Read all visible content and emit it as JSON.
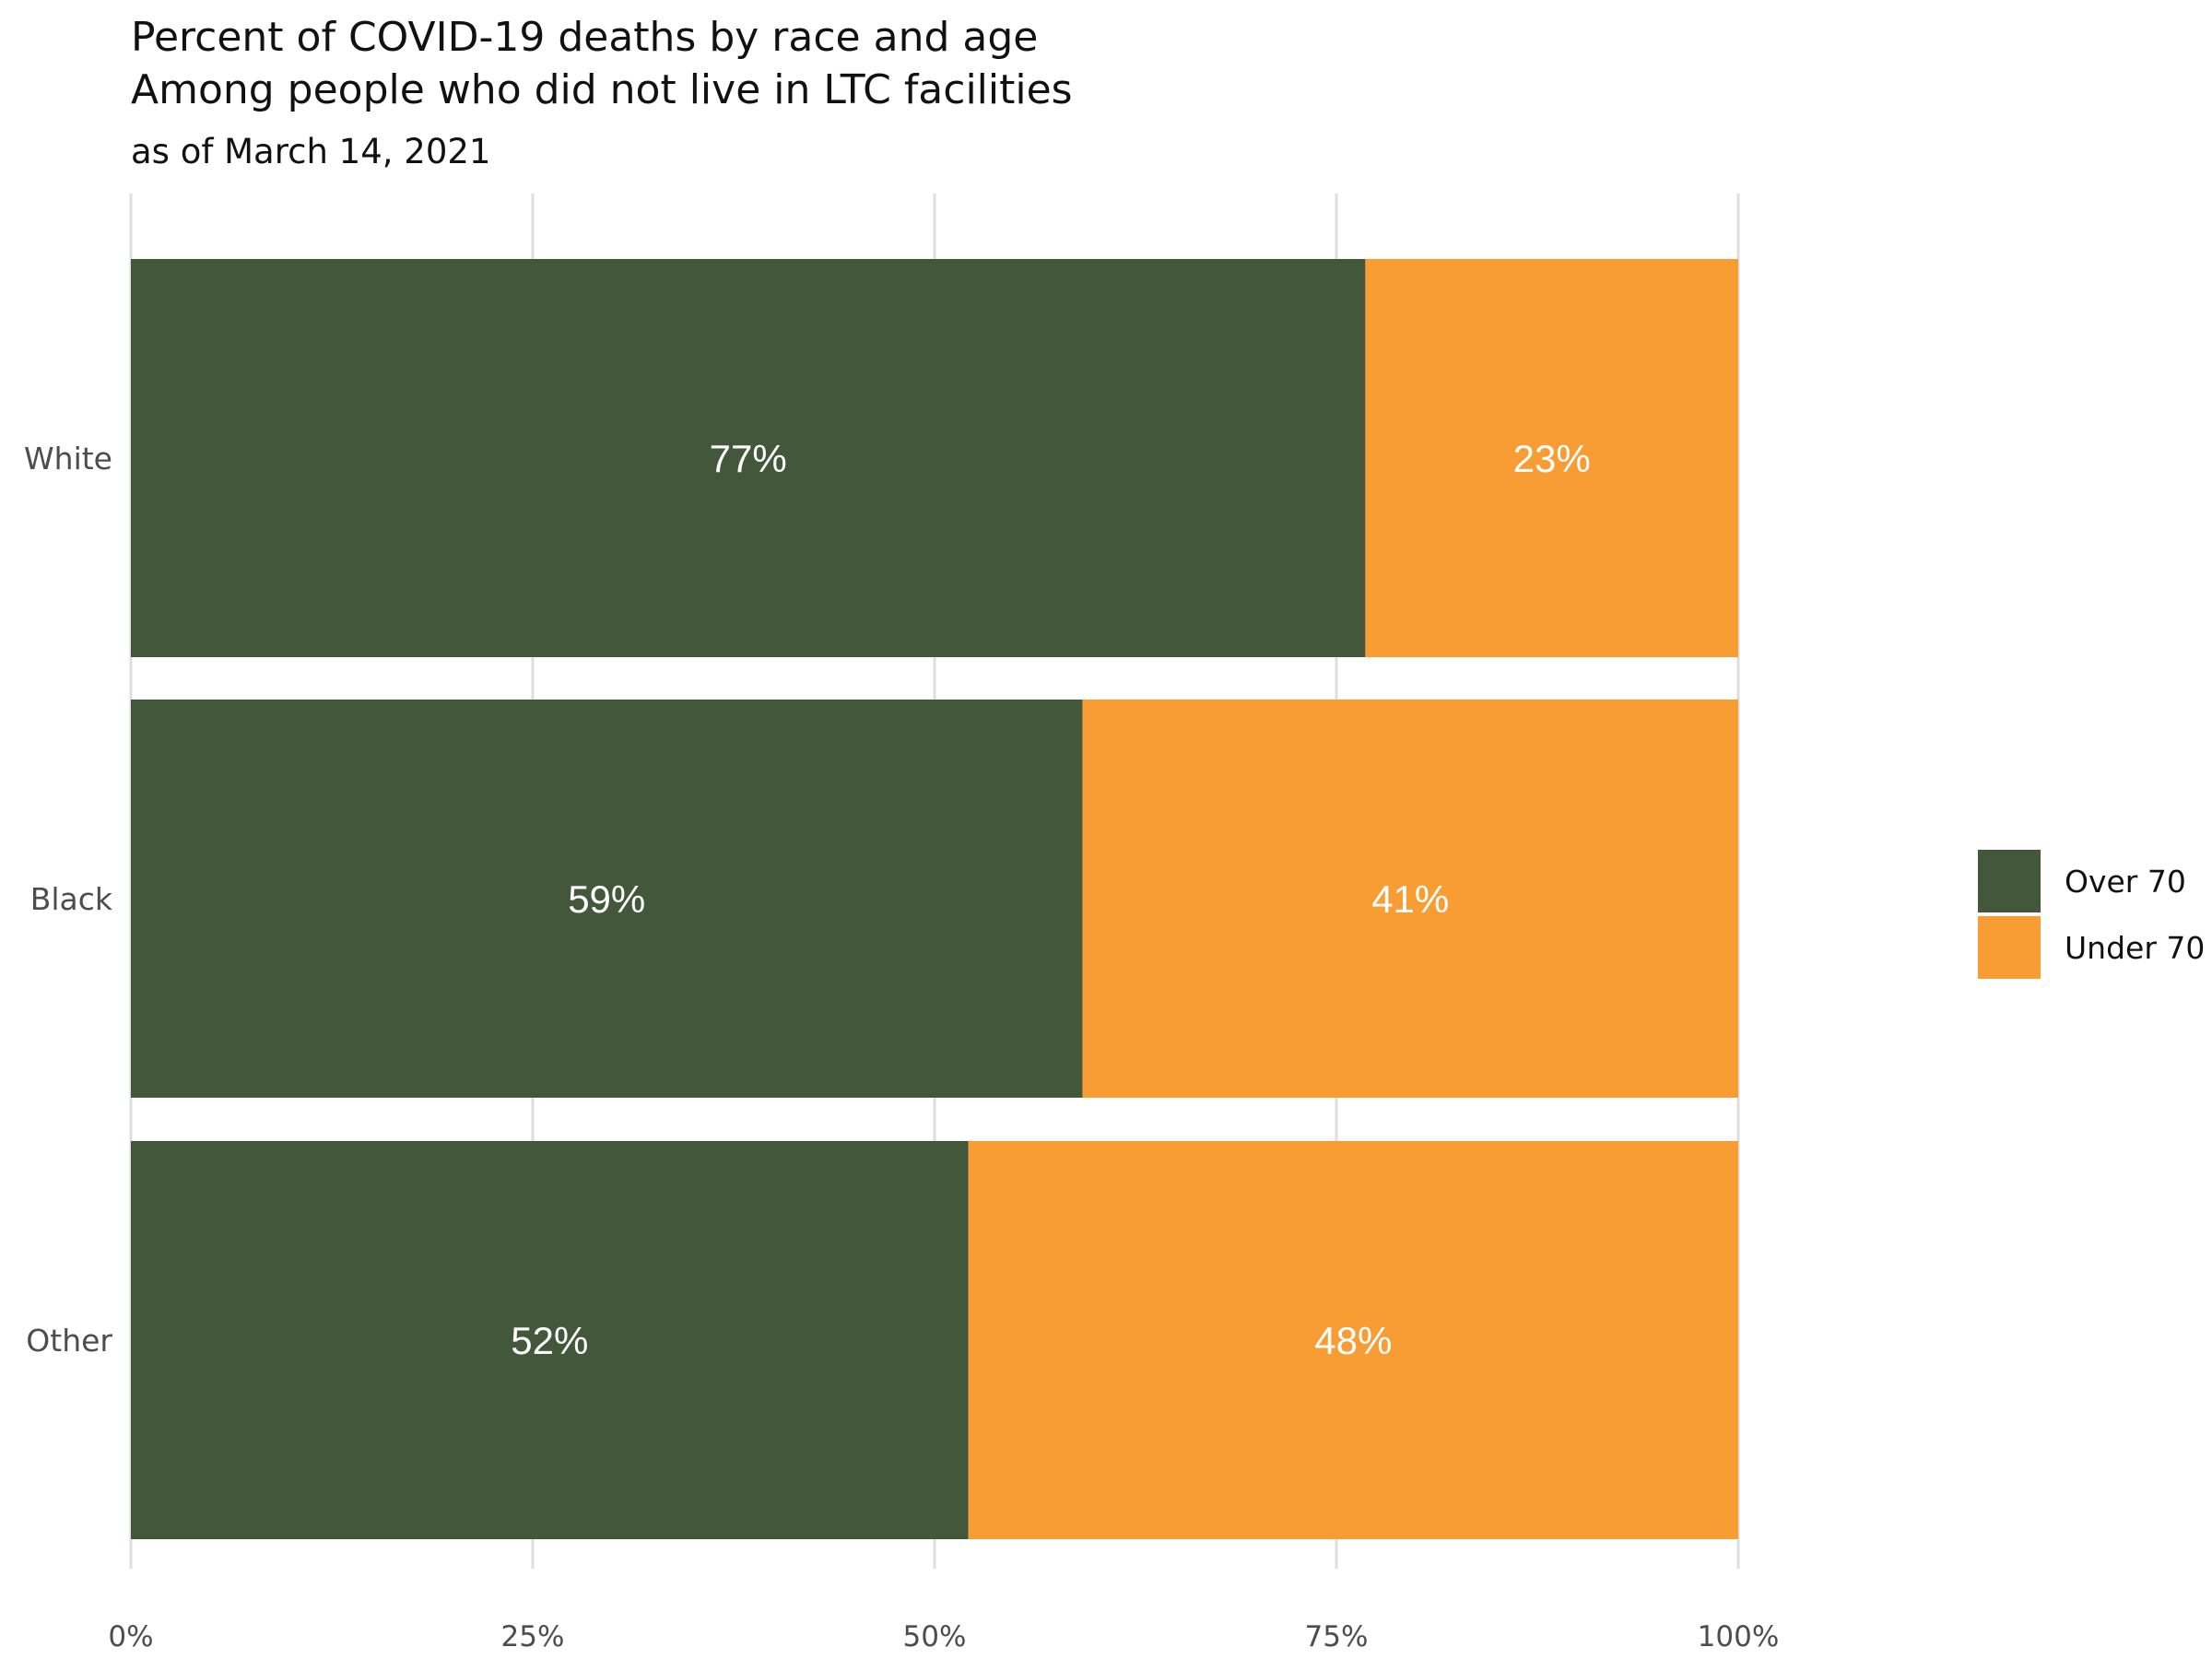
{
  "chart_data": {
    "type": "bar",
    "orientation": "horizontal",
    "stacked": true,
    "title": "Percent of COVID-19 deaths by race and age",
    "title_line2": "Among people who did not live in LTC facilities",
    "subtitle": "as of March 14, 2021",
    "xlabel": "",
    "ylabel": "",
    "categories": [
      "White",
      "Black",
      "Other"
    ],
    "series": [
      {
        "name": "Over 70",
        "color": "#43573a",
        "values": [
          76.8,
          59.2,
          52.1
        ],
        "labels": [
          "77%",
          "59%",
          "52%"
        ]
      },
      {
        "name": "Under 70",
        "color": "#f89d33",
        "values": [
          23.2,
          40.8,
          47.9
        ],
        "labels": [
          "23%",
          "41%",
          "48%"
        ]
      }
    ],
    "xlim": [
      0,
      100
    ],
    "x_ticks": [
      0,
      25,
      50,
      75,
      100
    ],
    "x_tick_labels": [
      "0%",
      "25%",
      "50%",
      "75%",
      "100%"
    ],
    "grid": true,
    "legend_position": "right"
  }
}
